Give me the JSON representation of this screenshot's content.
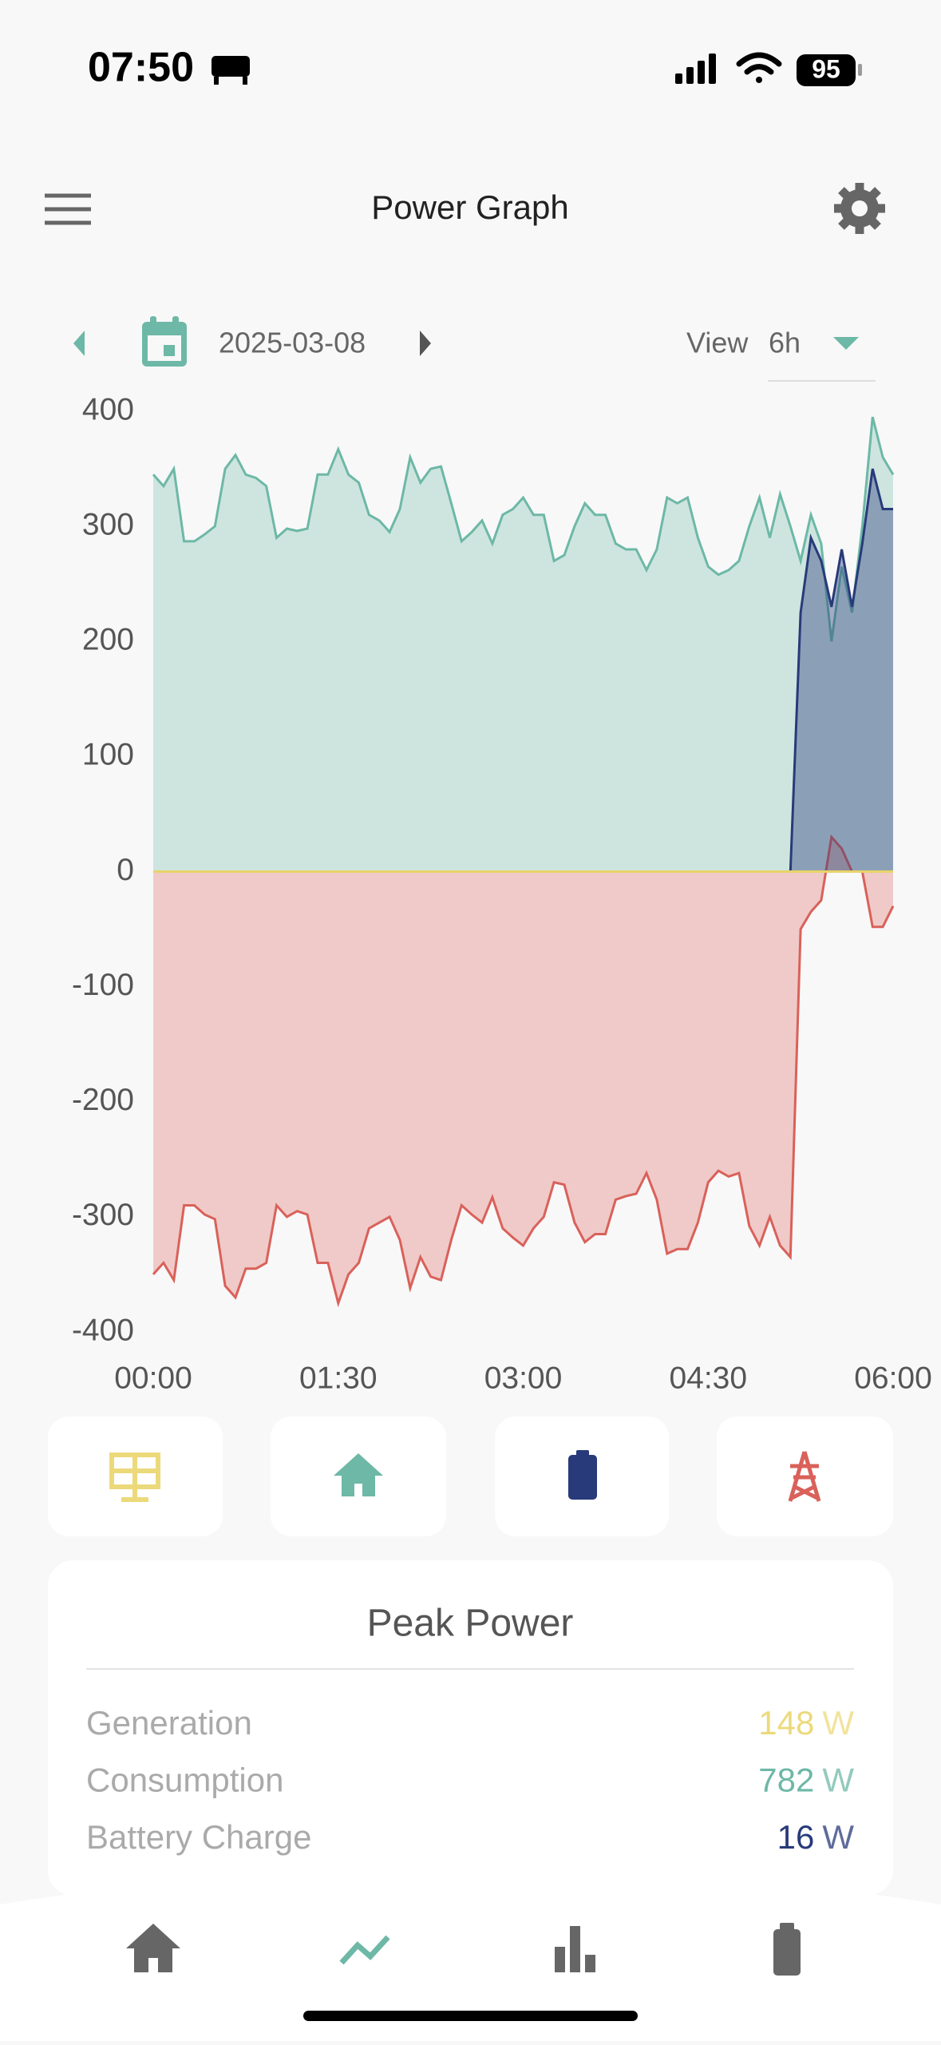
{
  "status_bar": {
    "time": "07:50",
    "battery": "95"
  },
  "header": {
    "title": "Power Graph"
  },
  "date_bar": {
    "date": "2025-03-08",
    "view_label": "View",
    "view_value": "6h"
  },
  "chart_data": {
    "type": "area",
    "x": [
      "00:00",
      "00:05",
      "00:10",
      "00:15",
      "00:20",
      "00:25",
      "00:30",
      "00:35",
      "00:40",
      "00:45",
      "00:50",
      "00:55",
      "01:00",
      "01:05",
      "01:10",
      "01:15",
      "01:20",
      "01:25",
      "01:30",
      "01:35",
      "01:40",
      "01:45",
      "01:50",
      "01:55",
      "02:00",
      "02:05",
      "02:10",
      "02:15",
      "02:20",
      "02:25",
      "02:30",
      "02:35",
      "02:40",
      "02:45",
      "02:50",
      "02:55",
      "03:00",
      "03:05",
      "03:10",
      "03:15",
      "03:20",
      "03:25",
      "03:30",
      "03:35",
      "03:40",
      "03:45",
      "03:50",
      "03:55",
      "04:00",
      "04:05",
      "04:10",
      "04:15",
      "04:20",
      "04:25",
      "04:30",
      "04:35",
      "04:40",
      "04:45",
      "04:50",
      "04:55",
      "05:00",
      "05:05",
      "05:10",
      "05:15",
      "05:20",
      "05:25",
      "05:30",
      "05:35",
      "05:40",
      "05:45",
      "05:50",
      "05:55",
      "06:00"
    ],
    "xlim": [
      "00:00",
      "06:00"
    ],
    "xticks": [
      "00:00",
      "01:30",
      "03:00",
      "04:30",
      "06:00"
    ],
    "ylim": [
      -400,
      400
    ],
    "yticks": [
      -400,
      -300,
      -200,
      -100,
      0,
      100,
      200,
      300,
      400
    ],
    "series": [
      {
        "color": "#6db8a6",
        "values": [
          345,
          335,
          350,
          287,
          287,
          293,
          300,
          350,
          362,
          345,
          342,
          335,
          290,
          298,
          296,
          298,
          345,
          345,
          367,
          345,
          338,
          310,
          305,
          295,
          315,
          360,
          338,
          350,
          352,
          320,
          287,
          295,
          305,
          285,
          310,
          315,
          325,
          310,
          310,
          270,
          275,
          300,
          320,
          310,
          310,
          285,
          280,
          280,
          262,
          280,
          325,
          320,
          325,
          290,
          265,
          258,
          262,
          270,
          300,
          325,
          290,
          328,
          300,
          270,
          310,
          285,
          200,
          265,
          225,
          300,
          395,
          360,
          345
        ]
      },
      {
        "color": "#d9615a",
        "values": [
          -350,
          -340,
          -355,
          -290,
          -290,
          -298,
          -302,
          -360,
          -370,
          -345,
          -345,
          -340,
          -290,
          -300,
          -295,
          -298,
          -340,
          -340,
          -375,
          -350,
          -340,
          -310,
          -305,
          -300,
          -320,
          -362,
          -335,
          -352,
          -355,
          -320,
          -290,
          -298,
          -305,
          -283,
          -310,
          -318,
          -325,
          -310,
          -300,
          -270,
          -272,
          -305,
          -322,
          -315,
          -315,
          -285,
          -282,
          -280,
          -262,
          -285,
          -332,
          -328,
          -328,
          -305,
          -270,
          -260,
          -265,
          -262,
          -308,
          -325,
          -300,
          -325,
          -335,
          -50,
          -35,
          -25,
          30,
          20,
          0,
          0,
          -48,
          -48,
          -30
        ]
      },
      {
        "color": "#283a7a",
        "values": [
          0,
          0,
          0,
          0,
          0,
          0,
          0,
          0,
          0,
          0,
          0,
          0,
          0,
          0,
          0,
          0,
          0,
          0,
          0,
          0,
          0,
          0,
          0,
          0,
          0,
          0,
          0,
          0,
          0,
          0,
          0,
          0,
          0,
          0,
          0,
          0,
          0,
          0,
          0,
          0,
          0,
          0,
          0,
          0,
          0,
          0,
          0,
          0,
          0,
          0,
          0,
          0,
          0,
          0,
          0,
          0,
          0,
          0,
          0,
          0,
          0,
          0,
          0,
          225,
          290,
          270,
          230,
          280,
          230,
          285,
          350,
          315,
          315
        ]
      },
      {
        "color": "#e8d36a",
        "values": [
          0,
          0,
          0,
          0,
          0,
          0,
          0,
          0,
          0,
          0,
          0,
          0,
          0,
          0,
          0,
          0,
          0,
          0,
          0,
          0,
          0,
          0,
          0,
          0,
          0,
          0,
          0,
          0,
          0,
          0,
          0,
          0,
          0,
          0,
          0,
          0,
          0,
          0,
          0,
          0,
          0,
          0,
          0,
          0,
          0,
          0,
          0,
          0,
          0,
          0,
          0,
          0,
          0,
          0,
          0,
          0,
          0,
          0,
          0,
          0,
          0,
          0,
          0,
          0,
          0,
          0,
          0,
          0,
          0,
          0,
          0,
          0,
          0
        ]
      }
    ]
  },
  "peak_power": {
    "title": "Peak Power",
    "rows": [
      {
        "label": "Generation",
        "value": 148,
        "unit": "W",
        "color": "#ecd97a"
      },
      {
        "label": "Consumption",
        "value": 782,
        "unit": "W",
        "color": "#6db8a6"
      },
      {
        "label": "Battery Charge",
        "value": 16,
        "unit": "W",
        "color": "#283a7a"
      }
    ]
  }
}
